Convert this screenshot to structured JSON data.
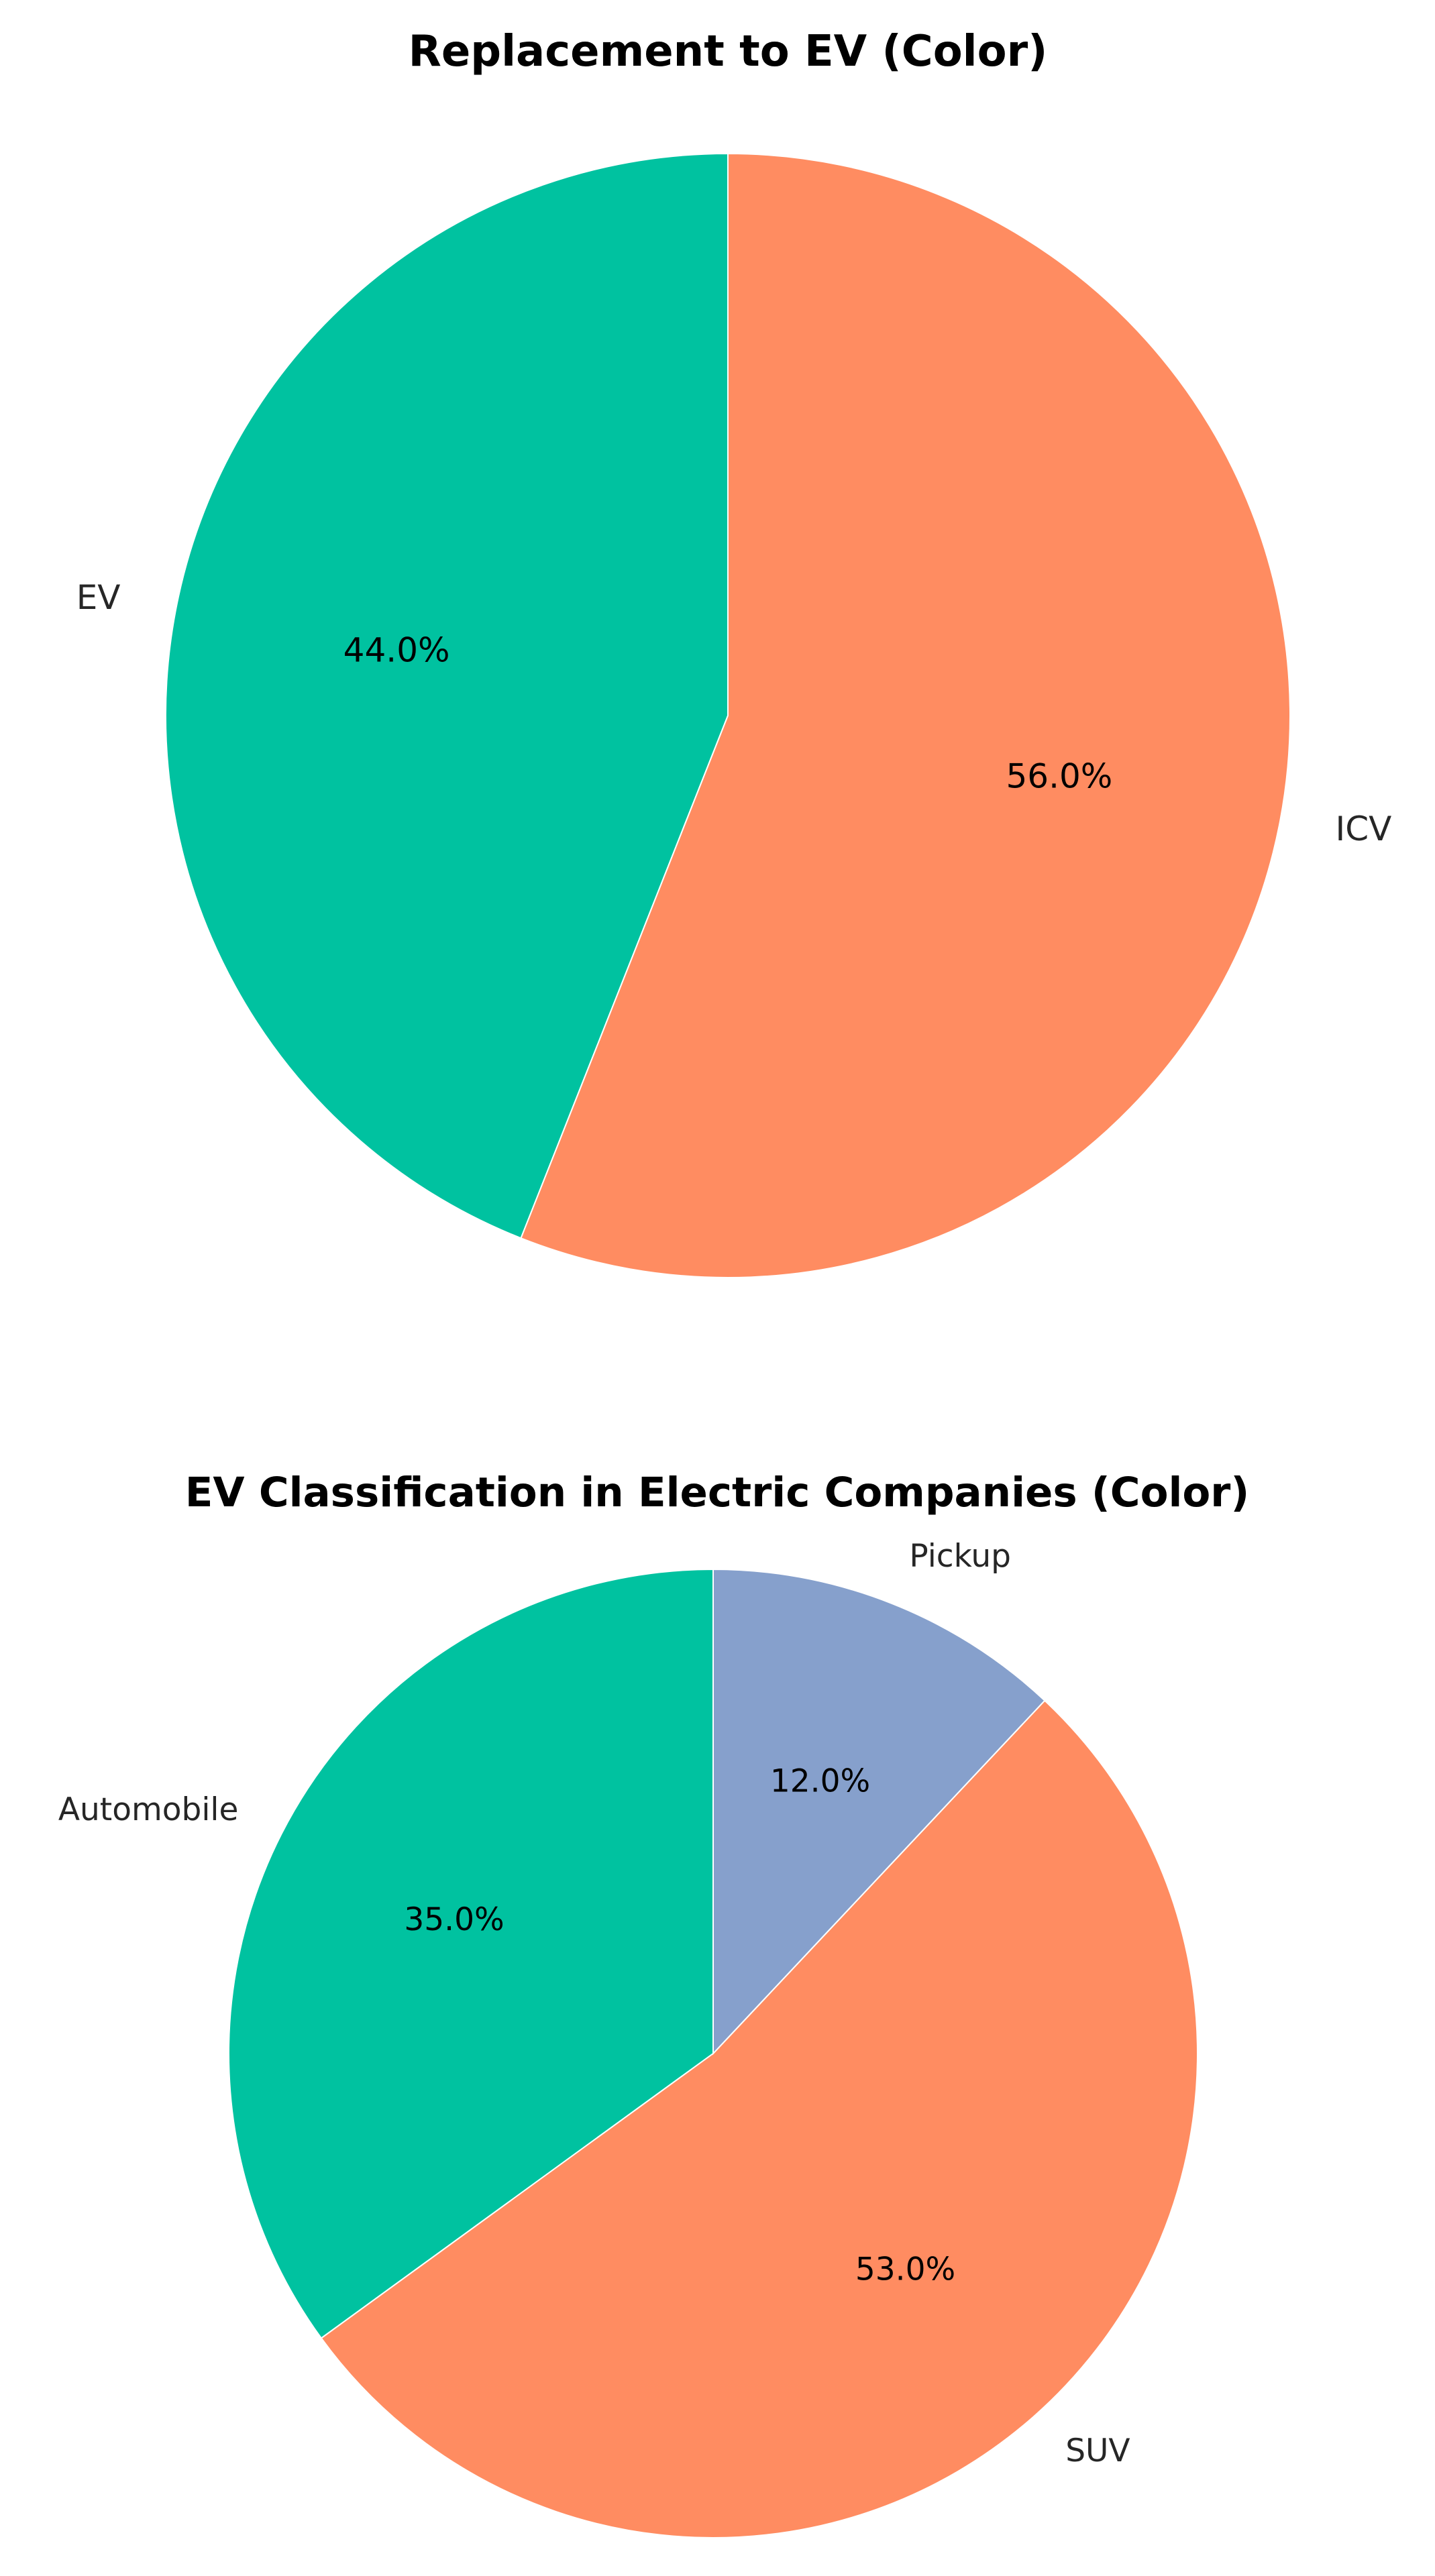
{
  "chart_data": [
    {
      "type": "pie",
      "title": "Replacement to EV (Color)",
      "start_angle_deg": 90,
      "direction": "counterclockwise",
      "slices": [
        {
          "label": "EV",
          "value": 44.0,
          "pct_label": "44.0%",
          "color": "#00C2A0"
        },
        {
          "label": "ICV",
          "value": 56.0,
          "pct_label": "56.0%",
          "color": "#FF8C61"
        }
      ]
    },
    {
      "type": "pie",
      "title": "EV Classification in Electric Companies (Color)",
      "start_angle_deg": 90,
      "direction": "counterclockwise",
      "slices": [
        {
          "label": "Automobile",
          "value": 35.0,
          "pct_label": "35.0%",
          "color": "#00C2A0"
        },
        {
          "label": "SUV",
          "value": 53.0,
          "pct_label": "53.0%",
          "color": "#FF8C61"
        },
        {
          "label": "Pickup",
          "value": 12.0,
          "pct_label": "12.0%",
          "color": "#86A0CC"
        }
      ]
    }
  ]
}
